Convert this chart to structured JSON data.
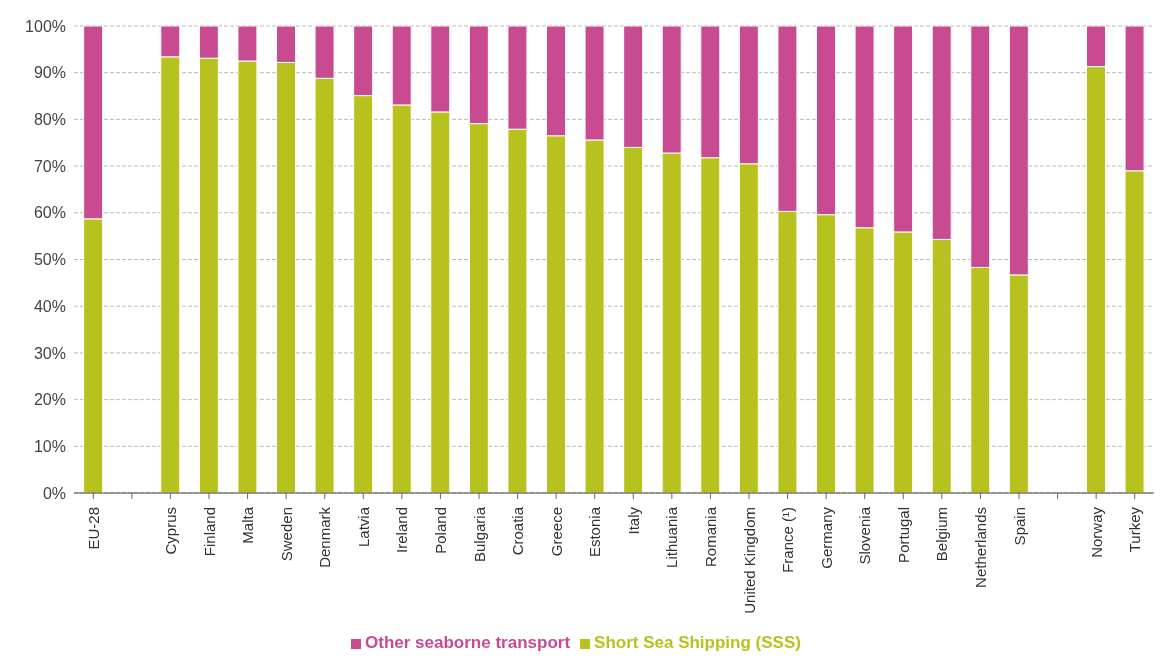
{
  "chart_data": {
    "type": "bar",
    "stacked": true,
    "categories": [
      "EU-28",
      null,
      "Cyprus",
      "Finland",
      "Malta",
      "Sweden",
      "Denmark",
      "Latvia",
      "Ireland",
      "Poland",
      "Bulgaria",
      "Croatia",
      "Greece",
      "Estonia",
      "Italy",
      "Lithuania",
      "Romania",
      "United Kingdom",
      "France (¹)",
      "Germany",
      "Slovenia",
      "Portugal",
      "Belgium",
      "Netherlands",
      "Spain",
      null,
      "Norway",
      "Turkey"
    ],
    "series": [
      {
        "name": "Short Sea Shipping (SSS)",
        "color": "#b8c21f",
        "values": [
          58.7,
          null,
          93.4,
          93.1,
          92.5,
          92.2,
          88.8,
          85.1,
          83.1,
          81.6,
          79.1,
          77.9,
          76.5,
          75.6,
          74.0,
          72.8,
          71.8,
          70.5,
          60.3,
          59.6,
          56.8,
          55.9,
          54.3,
          48.3,
          46.7,
          null,
          91.3,
          69.0
        ]
      },
      {
        "name": "Other seaborne transport",
        "color": "#c84b92",
        "values": [
          41.3,
          null,
          6.6,
          6.9,
          7.5,
          7.8,
          11.2,
          14.9,
          16.9,
          18.4,
          20.9,
          22.1,
          23.5,
          24.4,
          26.0,
          27.2,
          28.2,
          29.5,
          39.7,
          40.4,
          43.2,
          44.1,
          45.7,
          51.7,
          53.3,
          null,
          8.7,
          31.0
        ]
      }
    ],
    "ylim": [
      0,
      100
    ],
    "yticks": [
      {
        "value": 0,
        "label": "0%"
      },
      {
        "value": 10,
        "label": "10%"
      },
      {
        "value": 20,
        "label": "20%"
      },
      {
        "value": 30,
        "label": "30%"
      },
      {
        "value": 40,
        "label": "40%"
      },
      {
        "value": 50,
        "label": "50%"
      },
      {
        "value": 60,
        "label": "60%"
      },
      {
        "value": 70,
        "label": "70%"
      },
      {
        "value": 80,
        "label": "80%"
      },
      {
        "value": 90,
        "label": "90%"
      },
      {
        "value": 100,
        "label": "100%"
      }
    ],
    "grid": "y",
    "legend": "bottom"
  }
}
